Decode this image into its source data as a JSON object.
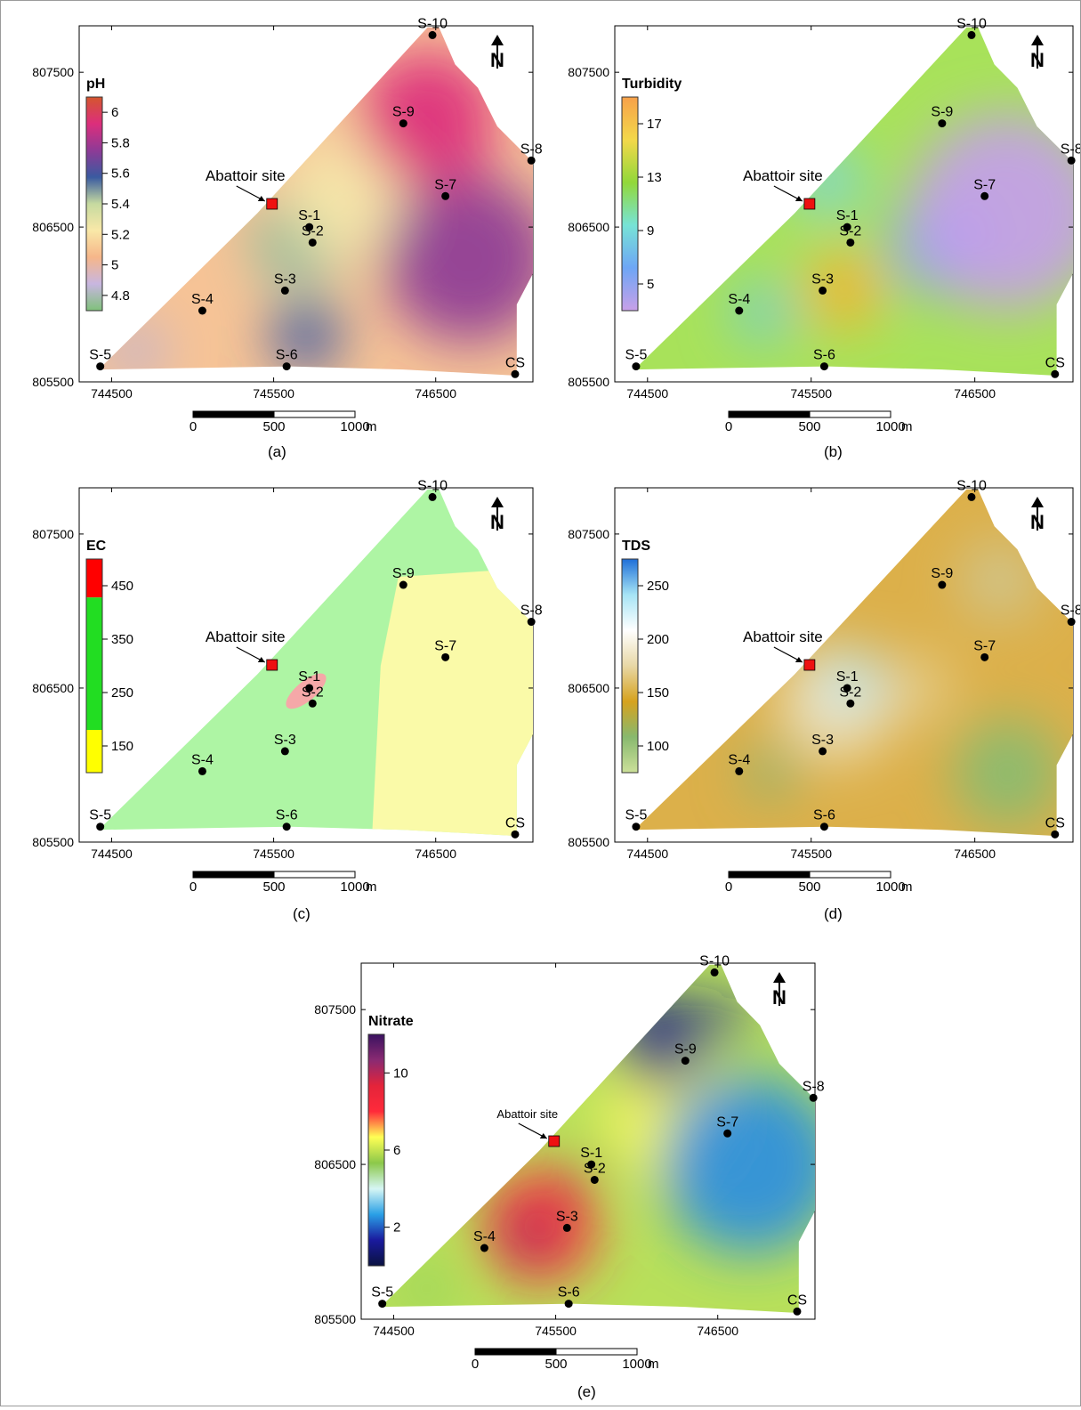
{
  "north_symbol": "N",
  "abattoir_label": "Abattoir site",
  "scale_bar_unit": "m",
  "maps": [
    {
      "id": "ph",
      "caption": "(a)",
      "legend_title": "pH",
      "x_ticks": [
        "744500",
        "745500",
        "746500"
      ],
      "y_ticks": [
        "807500",
        "806500",
        "805500"
      ],
      "scale_bar_labels": [
        "0",
        "500",
        "1000"
      ],
      "legend_ticks": [
        "6",
        "5.8",
        "5.6",
        "5.4",
        "5.2",
        "5",
        "4.8"
      ],
      "legend_colors": [
        "#d4562e",
        "#dc2e7c",
        "#8e3a96",
        "#3a5aa0",
        "#c6daa0",
        "#f9e8a8",
        "#f6b68a",
        "#c8b6e0",
        "#7fc17a"
      ],
      "surface_base": "#f6c396",
      "blobs": [
        {
          "cx": 745660,
          "cy": 806400,
          "r": 300,
          "color": "#9bc4a4"
        },
        {
          "cx": 745600,
          "cy": 806450,
          "r": 150,
          "color": "#7fae8c"
        },
        {
          "cx": 745950,
          "cy": 806700,
          "r": 380,
          "color": "#f6e8aa"
        },
        {
          "cx": 745700,
          "cy": 805800,
          "r": 220,
          "color": "#3e5aa2"
        },
        {
          "cx": 746700,
          "cy": 806300,
          "r": 520,
          "color": "#8d3a96"
        },
        {
          "cx": 746450,
          "cy": 807200,
          "r": 420,
          "color": "#dc2e7c"
        },
        {
          "cx": 744650,
          "cy": 805700,
          "r": 170,
          "color": "#b9b0d8"
        }
      ]
    },
    {
      "id": "turbidity",
      "caption": "(b)",
      "legend_title": "Turbidity",
      "x_ticks": [
        "744500",
        "745500",
        "746500"
      ],
      "y_ticks": [
        "807500",
        "806500",
        "805500"
      ],
      "scale_bar_labels": [
        "0",
        "500",
        "1000"
      ],
      "legend_ticks": [
        "17",
        "13",
        "9",
        "5"
      ],
      "legend_colors": [
        "#f7a14a",
        "#f3d84a",
        "#92d83a",
        "#77e3d6",
        "#6ea6f5",
        "#c8a0e8"
      ],
      "surface_base": "#a8e25a",
      "blobs": [
        {
          "cx": 745700,
          "cy": 806100,
          "r": 250,
          "color": "#f2b535"
        },
        {
          "cx": 745200,
          "cy": 805950,
          "r": 180,
          "color": "#73ccd6"
        },
        {
          "cx": 746300,
          "cy": 806400,
          "r": 320,
          "color": "#6ea8f0"
        },
        {
          "cx": 746700,
          "cy": 806600,
          "r": 600,
          "color": "#c49eea"
        },
        {
          "cx": 745600,
          "cy": 806800,
          "r": 220,
          "color": "#7ed6d8"
        }
      ]
    },
    {
      "id": "ec",
      "caption": "(c)",
      "legend_title": "EC",
      "x_ticks": [
        "744500",
        "745500",
        "746500"
      ],
      "y_ticks": [
        "807500",
        "806500",
        "805500"
      ],
      "scale_bar_labels": [
        "0",
        "500",
        "1000"
      ],
      "legend_ticks": [
        "450",
        "350",
        "250",
        "150"
      ],
      "legend_colors": [
        "#ff0000",
        "#ff0000",
        "#22dd22",
        "#22dd22",
        "#22dd22",
        "#22dd22",
        "#ffff00"
      ],
      "surface_base": "#aef5a4",
      "blobs": []
    },
    {
      "id": "tds",
      "caption": "(d)",
      "legend_title": "TDS",
      "x_ticks": [
        "744500",
        "745500",
        "746500"
      ],
      "y_ticks": [
        "807500",
        "806500",
        "805500"
      ],
      "scale_bar_labels": [
        "0",
        "500",
        "1000"
      ],
      "legend_ticks": [
        "250",
        "200",
        "150",
        "100"
      ],
      "legend_colors": [
        "#1f6fd8",
        "#a6e4f5",
        "#ffffff",
        "#e8d8a6",
        "#d6a21e",
        "#88b86e",
        "#cce09a"
      ],
      "surface_base": "#dcb04a",
      "blobs": [
        {
          "cx": 745650,
          "cy": 806400,
          "r": 350,
          "color": "#ede2c0"
        },
        {
          "cx": 745750,
          "cy": 806550,
          "r": 180,
          "color": "#b8e6f2"
        },
        {
          "cx": 745250,
          "cy": 805950,
          "r": 150,
          "color": "#7fb57a"
        },
        {
          "cx": 746700,
          "cy": 805950,
          "r": 330,
          "color": "#86bc72"
        },
        {
          "cx": 746650,
          "cy": 807200,
          "r": 240,
          "color": "#cfc794"
        },
        {
          "cx": 746150,
          "cy": 806500,
          "r": 220,
          "color": "#e4cc88"
        }
      ]
    },
    {
      "id": "nitrate",
      "caption": "(e)",
      "legend_title": "Nitrate",
      "x_ticks": [
        "744500",
        "745500",
        "746500"
      ],
      "y_ticks": [
        "807500",
        "806500",
        "805500"
      ],
      "scale_bar_labels": [
        "0",
        "500",
        "1000"
      ],
      "legend_ticks": [
        "10",
        "6",
        "2"
      ],
      "legend_colors": [
        "#3a1260",
        "#8a2a72",
        "#e4243a",
        "#ff2a3a",
        "#ffff55",
        "#8cc84a",
        "#d6f6f4",
        "#2aa0e6",
        "#1a1a9e",
        "#0a1240"
      ],
      "surface_base": "#b8e05a",
      "blobs": [
        {
          "cx": 745400,
          "cy": 806100,
          "r": 350,
          "color": "#ff2a3a"
        },
        {
          "cx": 745350,
          "cy": 806050,
          "r": 160,
          "color": "#8a2a66"
        },
        {
          "cx": 745700,
          "cy": 806450,
          "r": 90,
          "color": "#3a1a60"
        },
        {
          "cx": 746200,
          "cy": 806800,
          "r": 420,
          "color": "#f4f660"
        },
        {
          "cx": 746700,
          "cy": 806500,
          "r": 550,
          "color": "#2c8ee0"
        },
        {
          "cx": 746150,
          "cy": 807300,
          "r": 280,
          "color": "#14148a"
        },
        {
          "cx": 746550,
          "cy": 807450,
          "r": 120,
          "color": "#1a1a9e"
        },
        {
          "cx": 744700,
          "cy": 805700,
          "r": 150,
          "color": "#8fcf58"
        }
      ]
    }
  ],
  "sites": [
    {
      "label": "S-10",
      "x": 746480,
      "y": 807740
    },
    {
      "label": "S-9",
      "x": 746300,
      "y": 807170
    },
    {
      "label": "S-8",
      "x": 747090,
      "y": 806930
    },
    {
      "label": "S-7",
      "x": 746560,
      "y": 806700
    },
    {
      "label": "S-1",
      "x": 745720,
      "y": 806500
    },
    {
      "label": "S-2",
      "x": 745740,
      "y": 806400
    },
    {
      "label": "S-3",
      "x": 745570,
      "y": 806090
    },
    {
      "label": "S-4",
      "x": 745060,
      "y": 805960
    },
    {
      "label": "S-5",
      "x": 744430,
      "y": 805600
    },
    {
      "label": "S-6",
      "x": 745580,
      "y": 805600
    },
    {
      "label": "CS",
      "x": 746990,
      "y": 805550
    }
  ],
  "abattoir": {
    "x": 745490,
    "y": 806650
  }
}
